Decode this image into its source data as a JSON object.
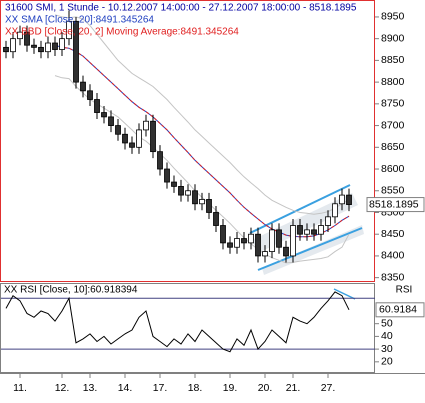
{
  "chart_data": [
    {
      "type": "candlestick",
      "title": "31600 SMI, 1 Stunde - 10.12.2007 14:00:00 - 27.12.2007 18:00:00 - 8518.1895",
      "open": [
        8880,
        8870,
        8900,
        8915,
        8885,
        8880,
        8870,
        8890,
        8875,
        8900,
        8940,
        8800,
        8780,
        8760,
        8730,
        8720,
        8700,
        8680,
        8660,
        8650,
        8690,
        8710,
        8640,
        8600,
        8570,
        8560,
        8540,
        8550,
        8520,
        8530,
        8500,
        8470,
        8430,
        8420,
        8440,
        8430,
        8450,
        8400,
        8410,
        8460,
        8420,
        8400,
        8470,
        8450,
        8460,
        8450,
        8470,
        8490,
        8520,
        8540
      ],
      "high": [
        8895,
        8915,
        8930,
        8930,
        8900,
        8895,
        8905,
        8905,
        8915,
        8965,
        8950,
        8815,
        8795,
        8775,
        8745,
        8735,
        8715,
        8695,
        8675,
        8705,
        8725,
        8725,
        8655,
        8615,
        8585,
        8575,
        8565,
        8565,
        8545,
        8545,
        8515,
        8485,
        8445,
        8455,
        8455,
        8465,
        8465,
        8425,
        8475,
        8475,
        8435,
        8485,
        8485,
        8475,
        8475,
        8485,
        8505,
        8535,
        8555,
        8555
      ],
      "low": [
        8855,
        8855,
        8885,
        8870,
        8865,
        8855,
        8855,
        8860,
        8860,
        8885,
        8785,
        8765,
        8745,
        8715,
        8705,
        8685,
        8665,
        8645,
        8635,
        8635,
        8675,
        8625,
        8585,
        8555,
        8545,
        8525,
        8525,
        8505,
        8505,
        8485,
        8455,
        8415,
        8405,
        8405,
        8415,
        8415,
        8385,
        8385,
        8395,
        8405,
        8385,
        8385,
        8435,
        8435,
        8435,
        8435,
        8455,
        8475,
        8505,
        8503
      ],
      "close": [
        8870,
        8900,
        8915,
        8885,
        8880,
        8870,
        8890,
        8875,
        8900,
        8940,
        8800,
        8780,
        8760,
        8730,
        8720,
        8700,
        8680,
        8660,
        8650,
        8690,
        8710,
        8640,
        8600,
        8570,
        8560,
        8540,
        8550,
        8520,
        8530,
        8500,
        8470,
        8430,
        8420,
        8440,
        8430,
        8450,
        8400,
        8410,
        8460,
        8420,
        8400,
        8470,
        8450,
        8460,
        8450,
        8470,
        8490,
        8520,
        8540,
        8518.1895
      ],
      "series": [
        {
          "name": "XX SMA [Close, 20]:8491.345264",
          "color": "#2040c0",
          "values": [
            null,
            null,
            null,
            null,
            null,
            null,
            null,
            8885,
            8880,
            8878,
            8870,
            8860,
            8845,
            8830,
            8815,
            8800,
            8785,
            8770,
            8755,
            8742,
            8732,
            8720,
            8705,
            8690,
            8672,
            8655,
            8638,
            8620,
            8605,
            8590,
            8575,
            8560,
            8545,
            8528,
            8512,
            8498,
            8485,
            8472,
            8462,
            8455,
            8448,
            8445,
            8444,
            8444,
            8446,
            8452,
            8460,
            8470,
            8482,
            8491.345264
          ]
        },
        {
          "name": "XX BBD [Close, 20, 2] Moving Average:8491.345264",
          "color": "#e02020",
          "values": [
            null,
            null,
            null,
            null,
            null,
            null,
            null,
            8885,
            8880,
            8878,
            8870,
            8860,
            8845,
            8830,
            8815,
            8800,
            8785,
            8770,
            8755,
            8742,
            8732,
            8720,
            8705,
            8690,
            8672,
            8655,
            8638,
            8620,
            8605,
            8590,
            8575,
            8560,
            8545,
            8528,
            8512,
            8498,
            8485,
            8472,
            8462,
            8455,
            8448,
            8445,
            8444,
            8444,
            8446,
            8452,
            8460,
            8470,
            8482,
            8491.345264
          ],
          "upper": [
            null,
            null,
            null,
            null,
            null,
            null,
            null,
            8955,
            8950,
            8948,
            8950,
            8945,
            8930,
            8910,
            8890,
            8870,
            8850,
            8835,
            8820,
            8810,
            8800,
            8790,
            8775,
            8760,
            8742,
            8725,
            8708,
            8690,
            8675,
            8660,
            8645,
            8630,
            8615,
            8598,
            8582,
            8568,
            8555,
            8540,
            8528,
            8520,
            8512,
            8505,
            8500,
            8498,
            8496,
            8498,
            8502,
            8510,
            8520,
            8530
          ],
          "lower": [
            null,
            null,
            null,
            null,
            null,
            null,
            null,
            8815,
            8810,
            8808,
            8790,
            8775,
            8760,
            8750,
            8740,
            8730,
            8720,
            8705,
            8690,
            8674,
            8664,
            8650,
            8635,
            8620,
            8602,
            8585,
            8568,
            8550,
            8535,
            8520,
            8505,
            8490,
            8475,
            8458,
            8442,
            8428,
            8415,
            8404,
            8396,
            8390,
            8384,
            8385,
            8388,
            8390,
            8392,
            8394,
            8398,
            8410,
            8420,
            8450
          ],
          "band_color": "#c4c4c4"
        }
      ],
      "ylim": [
        8340,
        8989
      ],
      "yticks": [
        8950,
        8900,
        8850,
        8800,
        8750,
        8700,
        8650,
        8600,
        8550,
        8500,
        8450,
        8400,
        8350
      ],
      "last_price": 8518.1895,
      "xticks": [
        {
          "value": 2,
          "label": "11."
        },
        {
          "value": 8,
          "label": "12."
        },
        {
          "value": 12,
          "label": "13."
        },
        {
          "value": 17,
          "label": "14."
        },
        {
          "value": 22,
          "label": "17."
        },
        {
          "value": 27,
          "label": "18."
        },
        {
          "value": 32,
          "label": "19."
        },
        {
          "value": 37,
          "label": "20."
        },
        {
          "value": 41,
          "label": "21."
        },
        {
          "value": 46,
          "label": "27."
        }
      ]
    },
    {
      "type": "line",
      "title": "XX RSI [Close, 10]:60.918394",
      "axis_label": "RSI",
      "color": "#000000",
      "values": [
        62,
        72,
        68,
        58,
        55,
        60,
        58,
        52,
        60,
        70,
        35,
        38,
        42,
        36,
        40,
        34,
        38,
        42,
        45,
        55,
        60,
        40,
        36,
        32,
        38,
        34,
        42,
        36,
        45,
        40,
        35,
        30,
        28,
        38,
        33,
        45,
        30,
        36,
        45,
        40,
        35,
        55,
        52,
        50,
        55,
        62,
        68,
        75,
        72,
        60.918394
      ],
      "ylim": [
        12,
        82
      ],
      "yticks": [
        50,
        40,
        30,
        20
      ],
      "levels": [
        70,
        30
      ],
      "last_value": {
        "value": 60.918394,
        "label": "60.9184"
      }
    }
  ]
}
